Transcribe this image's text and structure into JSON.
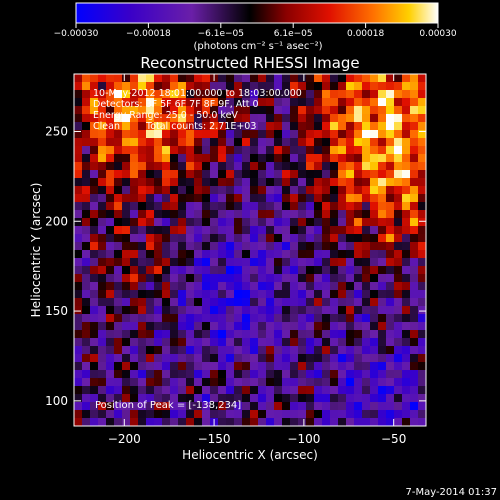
{
  "chart_data": {
    "type": "heatmap",
    "title": "Reconstructed RHESSI Image",
    "xlabel": "Heliocentric X (arcsec)",
    "ylabel": "Heliocentric Y (arcsec)",
    "xlim": [
      -228,
      -32
    ],
    "ylim": [
      86,
      282
    ],
    "x_ticks": [
      -200,
      -150,
      -100,
      -50
    ],
    "x_tick_labels": [
      "−200",
      "−150",
      "−100",
      "−50"
    ],
    "y_ticks": [
      100,
      150,
      200,
      250
    ],
    "y_tick_labels": [
      "100",
      "150",
      "200",
      "250"
    ],
    "colorbar": {
      "range": [
        -0.0003,
        0.0003
      ],
      "tick_labels": [
        "−0.00030",
        "−0.00018",
        "−6.1e−05",
        "6.1e−05",
        "0.00018",
        "0.00030"
      ],
      "unit_label": "(photons cm⁻² s⁻¹ asec⁻²)",
      "colormap": [
        "#0000ff",
        "#3a00c8",
        "#6a1fa8",
        "#000000",
        "#8a0000",
        "#e01000",
        "#ff7000",
        "#ffd000",
        "#ffffff"
      ]
    },
    "annotations": {
      "time_range": "10-May-2012 18:01:00.000 to 18:03:00.000",
      "detectors": "Detectors: 3F 5F 6F 7F 8F 9F, Att 0",
      "energy_range": "Energy Range: 25.0 - 50.0 keV",
      "clean_method": "Clean",
      "total_counts": "Total counts: 2.71E+03",
      "peak_position": "Position of Peak = [-138,234]"
    },
    "peak": {
      "x": -138,
      "y": 234
    },
    "grid": false,
    "legend": "colorbar-top"
  },
  "footer": {
    "date_stamp": "7-May-2014 01:37"
  }
}
